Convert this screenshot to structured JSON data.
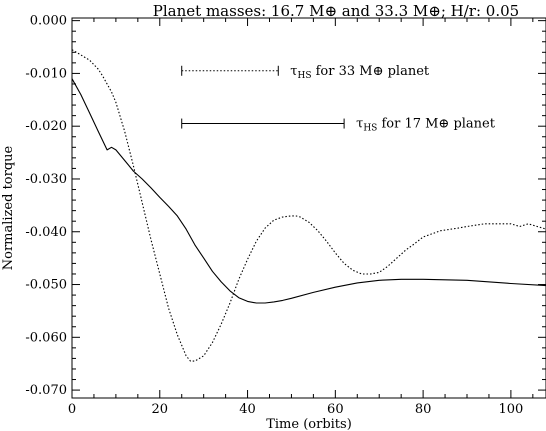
{
  "chart_data": {
    "type": "line",
    "title": "Planet masses: 16.7 M⊕ and  33.3 M⊕; H/r: 0.05",
    "xlabel": "Time (orbits)",
    "ylabel": "Normalized torque",
    "xlim": [
      0,
      108
    ],
    "ylim": [
      -0.0715,
      0.0005
    ],
    "x_ticks": [
      0,
      20,
      40,
      60,
      80,
      100
    ],
    "x_tick_labels": [
      "0",
      "20",
      "40",
      "60",
      "80",
      "100"
    ],
    "y_ticks": [
      0.0,
      -0.01,
      -0.02,
      -0.03,
      -0.04,
      -0.05,
      -0.06,
      -0.07
    ],
    "y_tick_labels": [
      "0.000",
      "-0.010",
      "-0.020",
      "-0.030",
      "-0.040",
      "-0.050",
      "-0.060",
      "-0.070"
    ],
    "grid": false,
    "legend": "none",
    "series": [
      {
        "style": "dotted",
        "x": [
          0,
          2,
          4,
          6,
          7,
          8,
          9,
          10,
          12,
          14,
          16,
          18,
          20,
          22,
          24,
          26,
          27,
          28,
          30,
          32,
          34,
          36,
          38,
          40,
          42,
          44,
          46,
          48,
          50,
          51,
          52,
          54,
          56,
          58,
          60,
          62,
          64,
          66,
          68,
          70,
          72,
          74,
          76,
          78,
          80,
          84,
          88,
          90,
          94,
          98,
          100,
          102,
          104,
          106,
          108
        ],
        "y": [
          -0.0055,
          -0.0065,
          -0.0075,
          -0.0092,
          -0.0105,
          -0.012,
          -0.0135,
          -0.0155,
          -0.021,
          -0.0275,
          -0.0345,
          -0.0415,
          -0.048,
          -0.0545,
          -0.0595,
          -0.0635,
          -0.0645,
          -0.0645,
          -0.0635,
          -0.061,
          -0.0575,
          -0.0535,
          -0.049,
          -0.0452,
          -0.0418,
          -0.0393,
          -0.0378,
          -0.0372,
          -0.037,
          -0.037,
          -0.0372,
          -0.0382,
          -0.0398,
          -0.0418,
          -0.044,
          -0.046,
          -0.0473,
          -0.048,
          -0.048,
          -0.0477,
          -0.0465,
          -0.045,
          -0.0435,
          -0.0423,
          -0.041,
          -0.0398,
          -0.0393,
          -0.039,
          -0.0385,
          -0.0385,
          -0.0385,
          -0.039,
          -0.0385,
          -0.039,
          -0.0395
        ]
      },
      {
        "style": "solid",
        "x": [
          0,
          2,
          4,
          6,
          8,
          9,
          10,
          12,
          14,
          16,
          18,
          20,
          22,
          24,
          26,
          28,
          30,
          32,
          34,
          36,
          38,
          40,
          42,
          44,
          46,
          48,
          50,
          55,
          60,
          65,
          70,
          75,
          80,
          90,
          100,
          108
        ],
        "y": [
          -0.011,
          -0.014,
          -0.0175,
          -0.021,
          -0.0245,
          -0.024,
          -0.0245,
          -0.0265,
          -0.0285,
          -0.03,
          -0.0317,
          -0.0335,
          -0.0352,
          -0.037,
          -0.0395,
          -0.0425,
          -0.045,
          -0.0475,
          -0.0495,
          -0.0512,
          -0.0525,
          -0.0532,
          -0.0535,
          -0.0535,
          -0.0533,
          -0.053,
          -0.0526,
          -0.0515,
          -0.0505,
          -0.0497,
          -0.0492,
          -0.049,
          -0.049,
          -0.0492,
          -0.0498,
          -0.0502
        ]
      }
    ],
    "annotations": [
      {
        "style": "dotted",
        "x_start": 25,
        "x_end": 47,
        "y": -0.0095,
        "tau": "τ",
        "sub": "HS",
        "rest": " for 33 M⊕ planet"
      },
      {
        "style": "solid",
        "x_start": 25,
        "x_end": 62,
        "y": -0.0195,
        "tau": "τ",
        "sub": "HS",
        "rest": " for 17 M⊕ planet"
      }
    ]
  }
}
